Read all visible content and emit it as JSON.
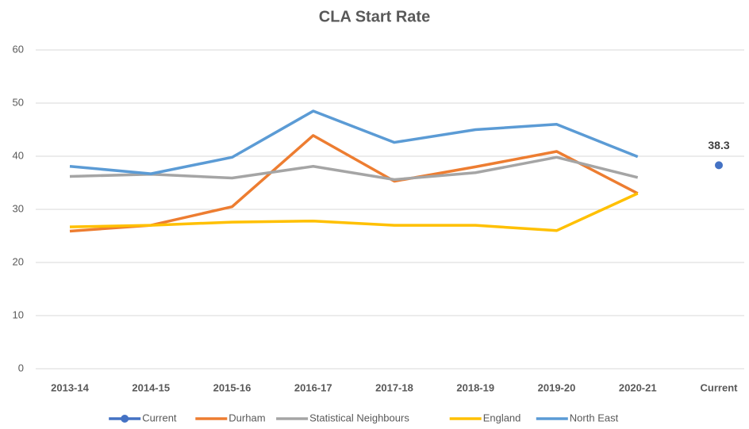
{
  "chart_data": {
    "type": "line",
    "title": "CLA Start Rate",
    "categories": [
      "2013-14",
      "2014-15",
      "2015-16",
      "2016-17",
      "2017-18",
      "2018-19",
      "2019-20",
      "2020-21",
      "Current"
    ],
    "series": [
      {
        "name": "Current",
        "color": "#4472c4",
        "values": [
          null,
          null,
          null,
          null,
          null,
          null,
          null,
          null,
          38.3
        ]
      },
      {
        "name": "Durham",
        "color": "#ed7d31",
        "values": [
          25.9,
          27,
          30.5,
          43.9,
          35.3,
          38,
          40.9,
          33,
          null
        ]
      },
      {
        "name": "Statistical Neighbours",
        "color": "#a5a5a5",
        "values": [
          36.2,
          36.6,
          35.9,
          38.1,
          35.6,
          36.9,
          39.8,
          36,
          null
        ]
      },
      {
        "name": "England",
        "color": "#ffc000",
        "values": [
          26.7,
          27,
          27.6,
          27.8,
          27,
          27,
          26,
          33,
          null
        ]
      },
      {
        "name": "North East",
        "color": "#5b9bd5",
        "values": [
          38.1,
          36.7,
          39.8,
          48.5,
          42.6,
          45,
          46,
          39.9,
          null
        ]
      }
    ],
    "ylim": [
      0,
      60
    ],
    "yticks": [
      0,
      10,
      20,
      30,
      40,
      50,
      60
    ],
    "grid": true,
    "legend": "bottom"
  }
}
